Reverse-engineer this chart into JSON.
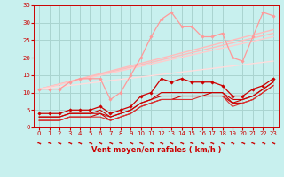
{
  "xlabel": "Vent moyen/en rafales ( km/h )",
  "bg_color": "#c8f0ee",
  "grid_color": "#aad4d0",
  "xlim": [
    -0.5,
    23.5
  ],
  "ylim": [
    0,
    35
  ],
  "xticks": [
    0,
    1,
    2,
    3,
    4,
    5,
    6,
    7,
    8,
    9,
    10,
    11,
    12,
    13,
    14,
    15,
    16,
    17,
    18,
    19,
    20,
    21,
    22,
    23
  ],
  "yticks": [
    0,
    5,
    10,
    15,
    20,
    25,
    30,
    35
  ],
  "series": [
    {
      "x": [
        0,
        1,
        2,
        3,
        4,
        5,
        6,
        7,
        8,
        9,
        10,
        11,
        12,
        13,
        14,
        15,
        16,
        17,
        18,
        19,
        20,
        21,
        22,
        23
      ],
      "y": [
        11,
        11,
        11,
        13,
        14,
        14,
        14,
        8,
        10,
        15,
        20,
        26,
        31,
        33,
        29,
        29,
        26,
        26,
        27,
        20,
        19,
        26,
        33,
        32
      ],
      "color": "#ff9999",
      "lw": 0.9,
      "marker": "D",
      "ms": 1.8,
      "zorder": 4
    },
    {
      "x": [
        0,
        23
      ],
      "y": [
        11,
        28
      ],
      "color": "#ffbbbb",
      "lw": 1.0,
      "marker": null,
      "ms": 0,
      "zorder": 2
    },
    {
      "x": [
        0,
        23
      ],
      "y": [
        11,
        27
      ],
      "color": "#ffbbbb",
      "lw": 1.0,
      "marker": null,
      "ms": 0,
      "zorder": 2
    },
    {
      "x": [
        0,
        23
      ],
      "y": [
        11,
        26
      ],
      "color": "#ffcccc",
      "lw": 1.0,
      "marker": null,
      "ms": 0,
      "zorder": 2
    },
    {
      "x": [
        0,
        23
      ],
      "y": [
        11,
        19
      ],
      "color": "#ffdddd",
      "lw": 1.0,
      "marker": null,
      "ms": 0,
      "zorder": 2
    },
    {
      "x": [
        0,
        1,
        2,
        3,
        4,
        5,
        6,
        7,
        8,
        9,
        10,
        11,
        12,
        13,
        14,
        15,
        16,
        17,
        18,
        19,
        20,
        21,
        22,
        23
      ],
      "y": [
        4,
        4,
        4,
        5,
        5,
        5,
        6,
        4,
        5,
        6,
        9,
        10,
        14,
        13,
        14,
        13,
        13,
        13,
        12,
        9,
        9,
        11,
        12,
        14
      ],
      "color": "#cc0000",
      "lw": 0.9,
      "marker": "D",
      "ms": 1.8,
      "zorder": 5
    },
    {
      "x": [
        0,
        1,
        2,
        3,
        4,
        5,
        6,
        7,
        8,
        9,
        10,
        11,
        12,
        13,
        14,
        15,
        16,
        17,
        18,
        19,
        20,
        21,
        22,
        23
      ],
      "y": [
        3,
        3,
        3,
        4,
        4,
        4,
        5,
        3,
        4,
        5,
        7,
        8,
        10,
        10,
        10,
        10,
        10,
        10,
        10,
        8,
        8,
        9,
        11,
        13
      ],
      "color": "#cc0000",
      "lw": 0.8,
      "marker": null,
      "ms": 0,
      "zorder": 3
    },
    {
      "x": [
        0,
        1,
        2,
        3,
        4,
        5,
        6,
        7,
        8,
        9,
        10,
        11,
        12,
        13,
        14,
        15,
        16,
        17,
        18,
        19,
        20,
        21,
        22,
        23
      ],
      "y": [
        3,
        3,
        3,
        4,
        4,
        4,
        4,
        3,
        4,
        5,
        7,
        8,
        9,
        9,
        9,
        9,
        9,
        10,
        10,
        7,
        8,
        9,
        11,
        13
      ],
      "color": "#cc0000",
      "lw": 0.8,
      "marker": null,
      "ms": 0,
      "zorder": 3
    },
    {
      "x": [
        0,
        1,
        2,
        3,
        4,
        5,
        6,
        7,
        8,
        9,
        10,
        11,
        12,
        13,
        14,
        15,
        16,
        17,
        18,
        19,
        20,
        21,
        22,
        23
      ],
      "y": [
        2,
        2,
        2,
        3,
        3,
        3,
        4,
        2,
        3,
        4,
        6,
        7,
        8,
        8,
        9,
        9,
        9,
        9,
        9,
        7,
        7,
        8,
        10,
        12
      ],
      "color": "#cc0000",
      "lw": 0.8,
      "marker": null,
      "ms": 0,
      "zorder": 3
    },
    {
      "x": [
        0,
        1,
        2,
        3,
        4,
        5,
        6,
        7,
        8,
        9,
        10,
        11,
        12,
        13,
        14,
        15,
        16,
        17,
        18,
        19,
        20,
        21,
        22,
        23
      ],
      "y": [
        2,
        2,
        2,
        3,
        3,
        3,
        3,
        2,
        3,
        4,
        6,
        7,
        8,
        8,
        8,
        8,
        9,
        9,
        9,
        6,
        7,
        8,
        10,
        12
      ],
      "color": "#dd3333",
      "lw": 0.8,
      "marker": null,
      "ms": 0,
      "zorder": 3
    }
  ],
  "arrow_color": "#cc0000",
  "arrow_fontsize": 5.5,
  "tick_fontsize": 5.0,
  "xlabel_fontsize": 6.0
}
